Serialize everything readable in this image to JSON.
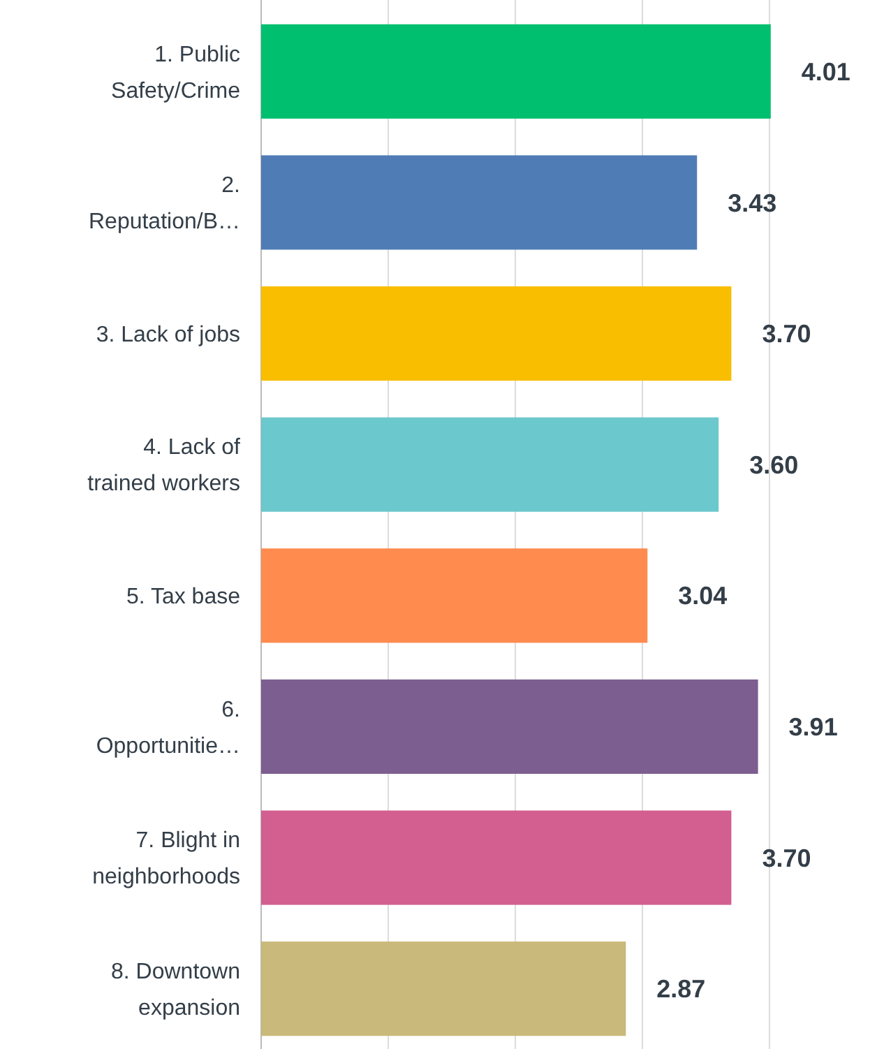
{
  "chart_data": {
    "type": "bar",
    "orientation": "horizontal",
    "categories": [
      "1. Public Safety/Crime",
      "2. Reputation/B…",
      "3. Lack of jobs",
      "4. Lack of trained workers",
      "5. Tax base",
      "6. Opportunitie…",
      "7. Blight in neighborhoods",
      "8. Downtown expansion"
    ],
    "values": [
      4.01,
      3.43,
      3.7,
      3.6,
      3.04,
      3.91,
      3.7,
      2.87
    ],
    "colors": [
      "#00bf6f",
      "#507cb6",
      "#f9be00",
      "#6bc8cd",
      "#ff8b4f",
      "#7d5e90",
      "#d25f90",
      "#c9b97a"
    ],
    "value_labels": [
      "4.01",
      "3.43",
      "3.70",
      "3.60",
      "3.04",
      "3.91",
      "3.70",
      "2.87"
    ],
    "xticks": [
      {
        "value": 0,
        "label": null
      },
      {
        "value": 1,
        "label": null
      },
      {
        "value": 2,
        "label": null
      },
      {
        "value": 3,
        "label": null
      },
      {
        "value": 4,
        "label": null
      }
    ],
    "grid": "x",
    "tick_labels": "y"
  }
}
